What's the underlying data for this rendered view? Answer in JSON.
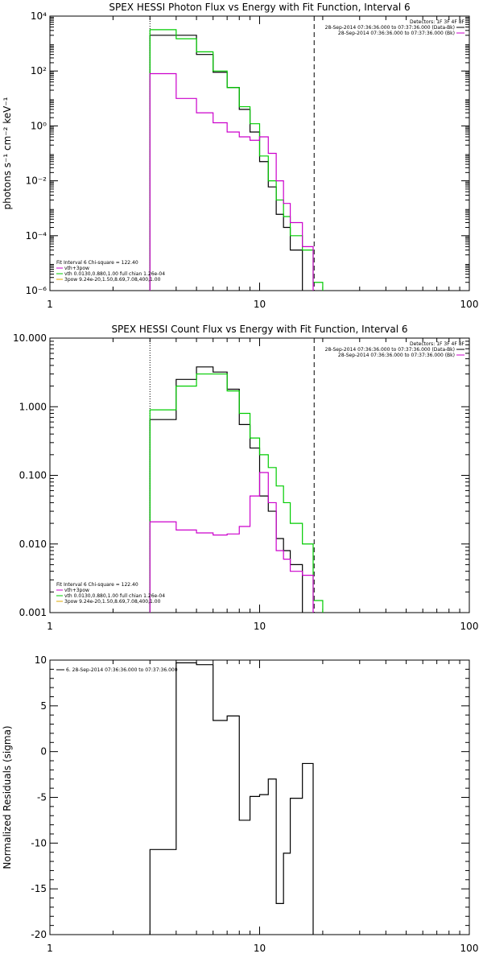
{
  "chart_data": [
    {
      "type": "line",
      "title": "SPEX HESSI Photon Flux vs Energy with Fit Function, Interval 6",
      "xlabel": "",
      "ylabel": "photons s⁻¹ cm⁻² keV⁻¹",
      "x_scale": "log",
      "y_scale": "log",
      "xlim": [
        1,
        100
      ],
      "ylim": [
        1e-06,
        10000.0
      ],
      "x_ticks": [
        "1",
        "10",
        "100"
      ],
      "y_ticks": [
        "10⁻⁶",
        "10⁻⁴",
        "10⁻²",
        "10⁰",
        "10²",
        "10⁴"
      ],
      "y_tick_values": [
        1e-06,
        0.0001,
        0.01,
        1,
        100,
        10000
      ],
      "vlines": [
        {
          "x": 3.0,
          "style": "dotted"
        },
        {
          "x": 18.2,
          "style": "dashed"
        }
      ],
      "bin_edges": [
        3.0,
        4.0,
        5.0,
        6.0,
        7.0,
        8.0,
        9.0,
        10.0,
        11.0,
        12.0,
        13.0,
        14.0,
        16.0,
        18.0,
        20.0
      ],
      "series": [
        {
          "color": "#000000",
          "values": [
            2000,
            2000,
            400,
            90,
            25,
            4,
            0.6,
            0.05,
            0.006,
            0.0006,
            0.0002,
            3e-05,
            null,
            null
          ]
        },
        {
          "color": "#00cc00",
          "values": [
            3200,
            1500,
            500,
            100,
            25,
            5,
            1.2,
            0.08,
            0.01,
            0.002,
            0.0005,
            0.0001,
            3e-05,
            2e-06
          ]
        },
        {
          "color": "#cc00cc",
          "values": [
            80,
            10,
            3,
            1.3,
            0.6,
            0.4,
            0.3,
            0.4,
            0.1,
            0.01,
            0.0015,
            0.0003,
            4e-05,
            null
          ]
        }
      ],
      "legend": {
        "header": "Detectors: 1F 3F 4F 8F",
        "entries": [
          {
            "label": "28-Sep-2014 07:36:36.000 to 07:37:36.000 (Data-Bk)",
            "color": "#000000"
          },
          {
            "label": "28-Sep-2014 07:36:36.000 to 07:37:36.000 (Bk)",
            "color": "#cc00cc"
          }
        ]
      },
      "fit_legend": {
        "header": "Fit Interval  6   Chi-square = 122.40",
        "entries": [
          {
            "label": "vth+3pow",
            "color": "#cc00cc"
          },
          {
            "label": "vth 0.0130,0.880,1.00  full chian 1.26e-04",
            "color": "#00cc00"
          },
          {
            "label": "3pow 9.24e-20,1.50,8.69,7.08,400,1.00",
            "color": "#ddaa00"
          }
        ]
      }
    },
    {
      "type": "line",
      "title": "SPEX HESSI Count Flux vs Energy with Fit Function, Interval 6",
      "xlabel": "",
      "ylabel": "",
      "x_scale": "log",
      "y_scale": "log",
      "xlim": [
        1,
        100
      ],
      "ylim": [
        0.001,
        10
      ],
      "x_ticks": [
        "1",
        "10",
        "100"
      ],
      "y_ticks": [
        "0.001",
        "0.010",
        "0.100",
        "1.000",
        "10.000"
      ],
      "y_tick_values": [
        0.001,
        0.01,
        0.1,
        1,
        10
      ],
      "vlines": [
        {
          "x": 3.0,
          "style": "dotted"
        },
        {
          "x": 18.2,
          "style": "dashed"
        }
      ],
      "bin_edges": [
        3.0,
        4.0,
        5.0,
        6.0,
        7.0,
        8.0,
        9.0,
        10.0,
        11.0,
        12.0,
        13.0,
        14.0,
        16.0,
        18.0,
        20.0
      ],
      "series": [
        {
          "color": "#000000",
          "values": [
            0.65,
            2.5,
            3.8,
            3.2,
            1.8,
            0.55,
            0.25,
            0.05,
            0.03,
            0.012,
            0.008,
            0.005,
            null,
            null
          ]
        },
        {
          "color": "#00cc00",
          "values": [
            0.9,
            2.0,
            3.0,
            3.0,
            1.7,
            0.8,
            0.35,
            0.2,
            0.13,
            0.07,
            0.04,
            0.02,
            0.01,
            0.0015
          ]
        },
        {
          "color": "#cc00cc",
          "values": [
            0.021,
            0.016,
            0.0145,
            0.0135,
            0.014,
            0.018,
            0.05,
            0.11,
            0.04,
            0.008,
            0.006,
            0.004,
            0.0035,
            null
          ]
        }
      ],
      "legend": {
        "header": "Detectors: 1F 3F 4F 8F",
        "entries": [
          {
            "label": "28-Sep-2014 07:36:36.000 to 07:37:36.000 (Data-Bk)",
            "color": "#000000"
          },
          {
            "label": "28-Sep-2014 07:36:36.000 to 07:37:36.000 (Bk)",
            "color": "#cc00cc"
          }
        ]
      },
      "fit_legend": {
        "header": "Fit Interval  6   Chi-square = 122.40",
        "entries": [
          {
            "label": "vth+3pow",
            "color": "#cc00cc"
          },
          {
            "label": "vth 0.0130,0.880,1.00  full chian 1.26e-04",
            "color": "#00cc00"
          },
          {
            "label": "3pow 9.24e-20,1.50,8.69,7.08,400,1.00",
            "color": "#ddaa00"
          }
        ]
      }
    },
    {
      "type": "line",
      "title": "",
      "xlabel": "",
      "ylabel": "Normalized Residuals (sigma)",
      "x_scale": "log",
      "y_scale": "linear",
      "xlim": [
        1,
        100
      ],
      "ylim": [
        -20,
        10
      ],
      "x_ticks": [
        "1",
        "10",
        "100"
      ],
      "y_ticks": [
        "-20",
        "-15",
        "-10",
        "-5",
        "0",
        "5",
        "10"
      ],
      "y_tick_values": [
        -20,
        -15,
        -10,
        -5,
        0,
        5,
        10
      ],
      "vlines": [],
      "bin_edges": [
        3.0,
        4.0,
        5.0,
        6.0,
        7.0,
        8.0,
        9.0,
        10.0,
        11.0,
        12.0,
        13.0,
        14.0,
        16.0,
        18.0
      ],
      "series": [
        {
          "color": "#000000",
          "values": [
            -10.7,
            9.7,
            9.5,
            3.4,
            3.9,
            -7.5,
            -4.9,
            -4.7,
            -3.0,
            -16.6,
            -11.1,
            -5.1,
            -1.3
          ]
        }
      ],
      "legend": {
        "header": "",
        "entries": [
          {
            "label": "6. 28-Sep-2014 07:36:36.000 to 07:37:36.000",
            "color": "#000000"
          }
        ]
      },
      "fit_legend": null
    }
  ]
}
